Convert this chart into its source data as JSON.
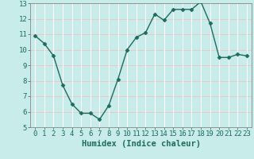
{
  "x": [
    0,
    1,
    2,
    3,
    4,
    5,
    6,
    7,
    8,
    9,
    10,
    11,
    12,
    13,
    14,
    15,
    16,
    17,
    18,
    19,
    20,
    21,
    22,
    23
  ],
  "y": [
    10.9,
    10.4,
    9.6,
    7.7,
    6.5,
    5.9,
    5.9,
    5.5,
    6.4,
    8.1,
    10.0,
    10.8,
    11.1,
    12.3,
    11.9,
    12.6,
    12.6,
    12.6,
    13.1,
    11.7,
    9.5,
    9.5,
    9.7,
    9.6
  ],
  "line_color": "#1e6b5e",
  "marker": "D",
  "marker_size": 2.5,
  "bg_color": "#c8ecea",
  "grid_color_h": "#e8c8c8",
  "grid_color_v": "#ffffff",
  "xlabel": "Humidex (Indice chaleur)",
  "ylim": [
    5,
    13
  ],
  "xlim_min": -0.5,
  "xlim_max": 23.5,
  "yticks": [
    5,
    6,
    7,
    8,
    9,
    10,
    11,
    12,
    13
  ],
  "xticks": [
    0,
    1,
    2,
    3,
    4,
    5,
    6,
    7,
    8,
    9,
    10,
    11,
    12,
    13,
    14,
    15,
    16,
    17,
    18,
    19,
    20,
    21,
    22,
    23
  ],
  "tick_color": "#1e6b5e",
  "tick_label_size": 6.5,
  "xlabel_size": 7.5,
  "xlabel_weight": "bold",
  "spine_color": "#888888",
  "linewidth": 1.0
}
